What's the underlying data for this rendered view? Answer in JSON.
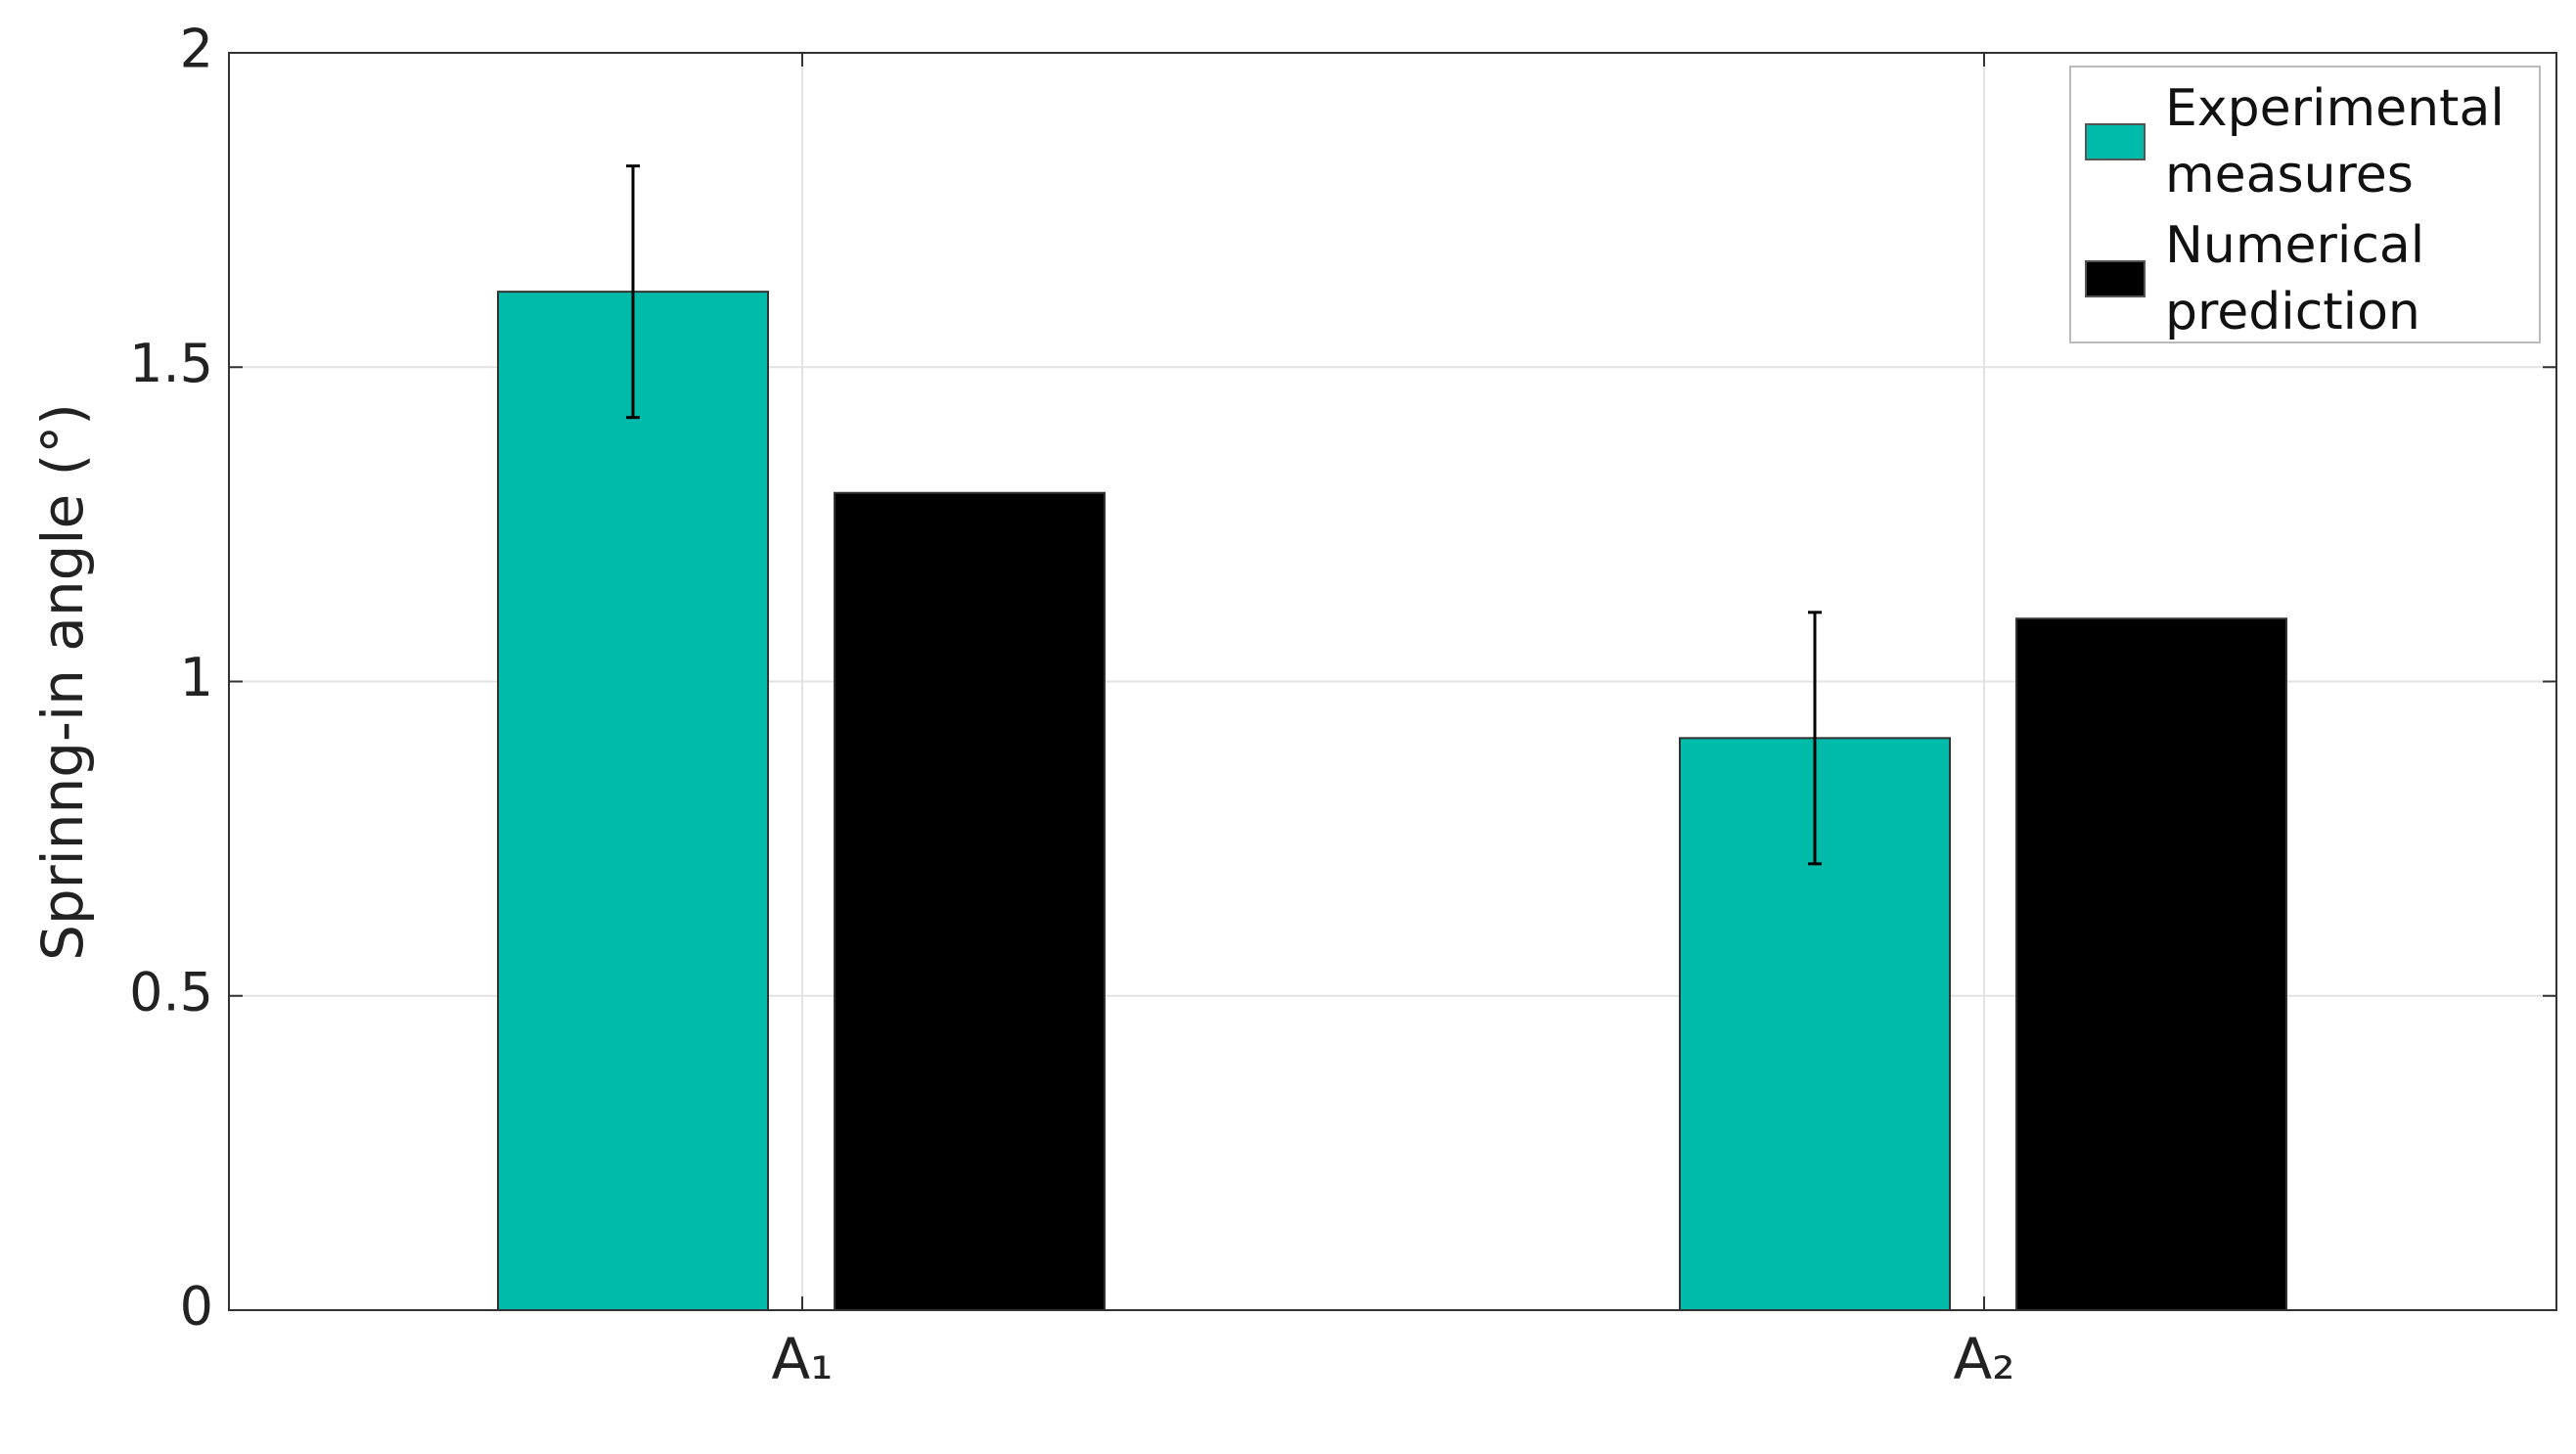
{
  "chart_data": {
    "type": "bar",
    "y_label": "Sprinng-in angle (°)",
    "categories": [
      "A₁",
      "A₂"
    ],
    "series": [
      {
        "name": "Experimental measures",
        "color": "#00baaa",
        "values": [
          1.62,
          0.91
        ],
        "errors": [
          0.2,
          0.2
        ]
      },
      {
        "name": "Numerical prediction",
        "color": "#000000",
        "values": [
          1.3,
          1.1
        ]
      }
    ],
    "ylim": [
      0,
      2
    ],
    "yticks": [
      0,
      0.5,
      1,
      1.5,
      2
    ],
    "grid": true,
    "legend": "upper right"
  }
}
